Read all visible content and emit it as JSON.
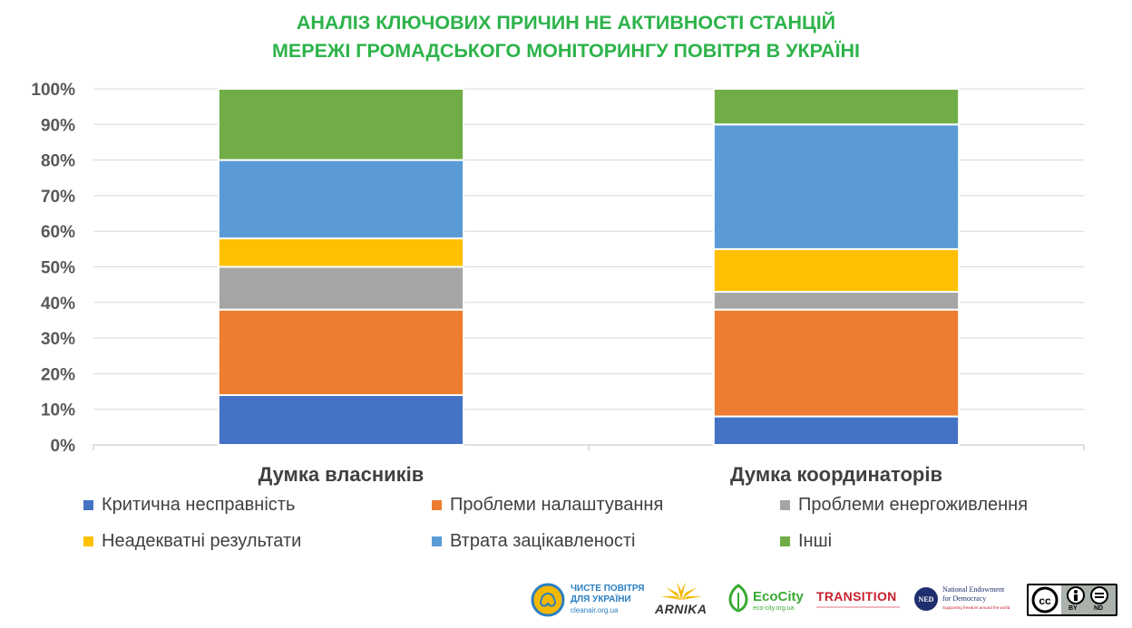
{
  "title_line1": "АНАЛІЗ КЛЮЧОВИХ ПРИЧИН НЕ АКТИВНОСТІ СТАНЦІЙ",
  "title_line2": "МЕРЕЖІ ГРОМАДСЬКОГО МОНІТОРИНГУ ПОВІТРЯ В УКРАЇНІ",
  "chart_data": {
    "type": "bar",
    "stacked": true,
    "categories": [
      "Думка власників",
      "Думка координаторів"
    ],
    "series": [
      {
        "name": "Критична несправність",
        "color": "#4472C4",
        "values": [
          14,
          8
        ]
      },
      {
        "name": "Проблеми налаштування",
        "color": "#ED7D31",
        "values": [
          24,
          30
        ]
      },
      {
        "name": "Проблеми енергоживлення",
        "color": "#A5A5A5",
        "values": [
          12,
          5
        ]
      },
      {
        "name": "Неадекватні результати",
        "color": "#FFC000",
        "values": [
          8,
          12
        ]
      },
      {
        "name": "Втрата зацікавленості",
        "color": "#5B9BD5",
        "values": [
          22,
          35
        ]
      },
      {
        "name": "Інші",
        "color": "#70AD47",
        "values": [
          20,
          10
        ]
      }
    ],
    "yticks": [
      "0%",
      "10%",
      "20%",
      "30%",
      "40%",
      "50%",
      "60%",
      "70%",
      "80%",
      "90%",
      "100%"
    ],
    "ylim": [
      0,
      100
    ],
    "grid": true,
    "legend_position": "bottom"
  },
  "logos": {
    "cleanair_line1": "ЧИСТЕ ПОВІТРЯ",
    "cleanair_line2": "ДЛЯ УКРАЇНИ",
    "cleanair_url": "cleanair.org.ua",
    "arnika": "ARNIKA",
    "ecocity": "EcoCity",
    "ecocity_url": "eco-city.org.ua",
    "transition": "TRANSITION",
    "ned_badge": "NED",
    "ned_line1": "National Endowment",
    "ned_line2": "for Democracy",
    "ned_tagline": "Supporting freedom around the world",
    "cc_by": "BY",
    "cc_nd": "ND"
  }
}
